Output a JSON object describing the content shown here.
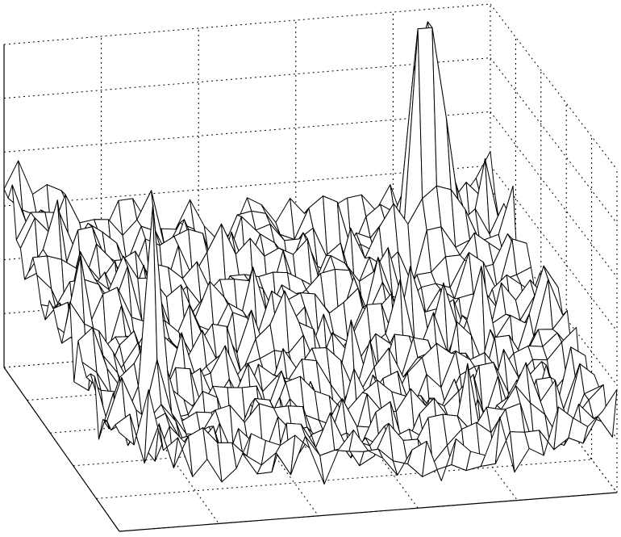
{
  "chart_data": {
    "type": "surface",
    "title": "",
    "xlabel": "",
    "ylabel": "",
    "zlabel": "",
    "grid": true,
    "tick_labels_visible": false,
    "mesh": {
      "rows": 28,
      "cols": 34
    },
    "zlim": [
      0,
      6
    ],
    "peaks": [
      {
        "name": "right-back-double-peak",
        "u": 0.86,
        "v": 0.1,
        "height": 6.0
      },
      {
        "name": "left-front-peak",
        "u": 0.12,
        "v": 0.78,
        "height": 3.5
      },
      {
        "name": "left-edge-peak",
        "u": 0.02,
        "v": 0.55,
        "height": 2.2
      },
      {
        "name": "right-edge-peak",
        "u": 0.98,
        "v": 0.55,
        "height": 1.4
      }
    ],
    "base_level": 0.8,
    "noise_amplitude": 0.55
  }
}
